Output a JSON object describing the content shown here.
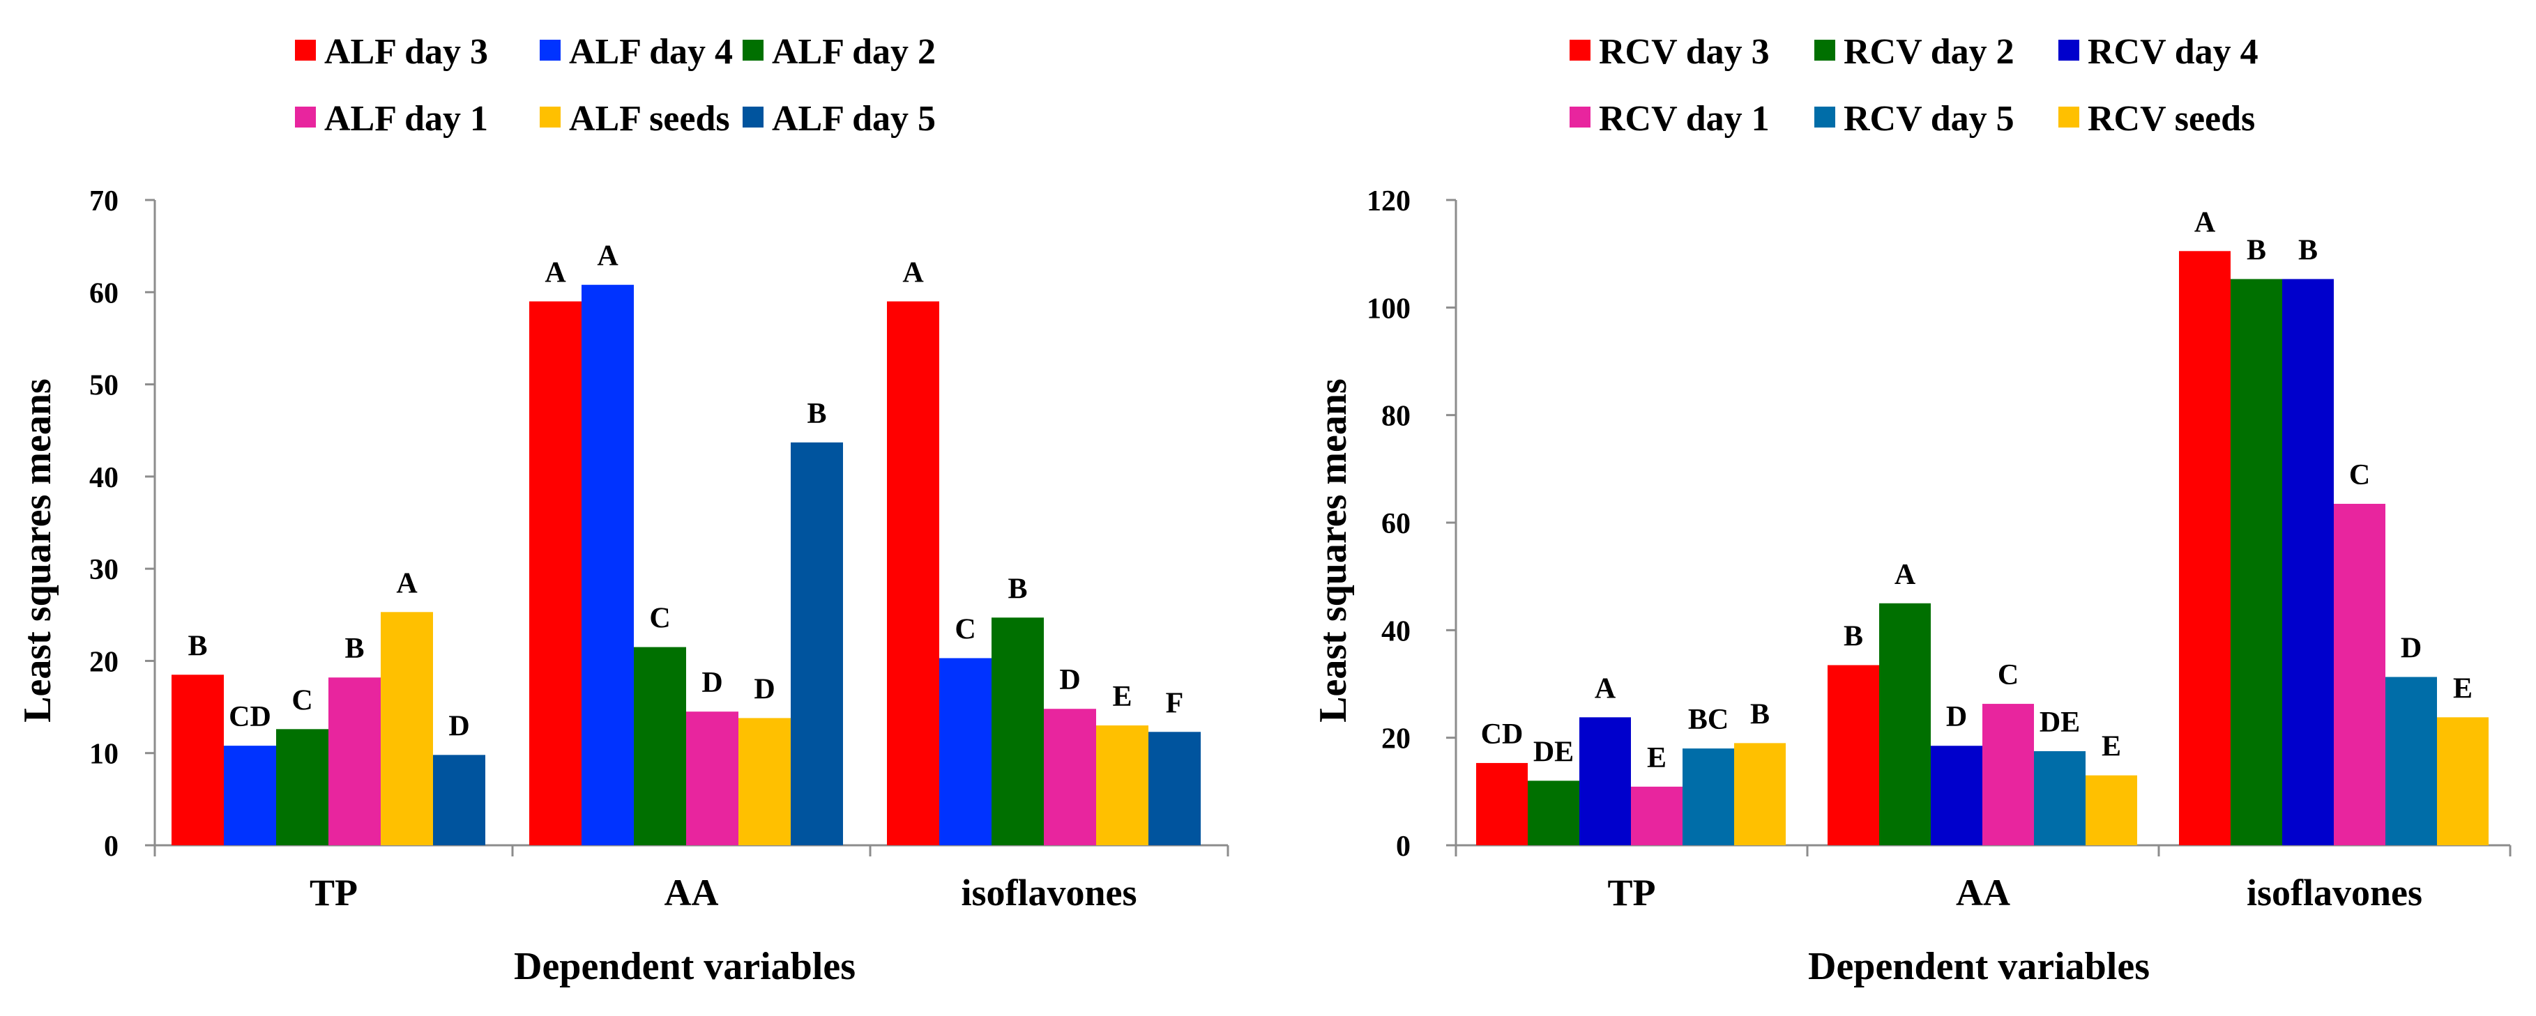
{
  "chart_data": [
    {
      "type": "bar",
      "title": "",
      "xlabel": "Dependent variables",
      "ylabel": "Least squares means",
      "ylim": [
        0,
        70
      ],
      "yticks": [
        0,
        10,
        20,
        30,
        40,
        50,
        60,
        70
      ],
      "grid": false,
      "legend_position": "top",
      "categories": [
        "TP",
        "AA",
        "isoflavones"
      ],
      "series": [
        {
          "name": "ALF day 3",
          "color": "#ff0000",
          "values": [
            18.5,
            59,
            59
          ],
          "labels": [
            "B",
            "A",
            "A"
          ]
        },
        {
          "name": "ALF day 4",
          "color": "#0033ff",
          "values": [
            10.8,
            60.8,
            20.3
          ],
          "labels": [
            "CD",
            "A",
            "C"
          ]
        },
        {
          "name": "ALF day 2",
          "color": "#007000",
          "values": [
            12.6,
            21.5,
            24.7
          ],
          "labels": [
            "C",
            "C",
            "B"
          ]
        },
        {
          "name": "ALF day 1",
          "color": "#e8259e",
          "values": [
            18.2,
            14.5,
            14.8
          ],
          "labels": [
            "B",
            "D",
            "D"
          ]
        },
        {
          "name": "ALF seeds",
          "color": "#ffc000",
          "values": [
            25.3,
            13.8,
            13.0
          ],
          "labels": [
            "A",
            "D",
            "E"
          ]
        },
        {
          "name": "ALF day 5",
          "color": "#00549e",
          "values": [
            9.8,
            43.7,
            12.3
          ],
          "labels": [
            "D",
            "B",
            "F"
          ]
        }
      ]
    },
    {
      "type": "bar",
      "title": "",
      "xlabel": "Dependent variables",
      "ylabel": "Least squares means",
      "ylim": [
        0,
        120
      ],
      "yticks": [
        0,
        20,
        40,
        60,
        80,
        100,
        120
      ],
      "grid": false,
      "legend_position": "top",
      "categories": [
        "TP",
        "AA",
        "isoflavones"
      ],
      "series": [
        {
          "name": "RCV day 3",
          "color": "#ff0000",
          "values": [
            15.3,
            33.5,
            110.5
          ],
          "labels": [
            "CD",
            "B",
            "A"
          ]
        },
        {
          "name": "RCV day 2",
          "color": "#007000",
          "values": [
            12.0,
            45.0,
            105.3
          ],
          "labels": [
            "DE",
            "A",
            "B"
          ]
        },
        {
          "name": "RCV day 4",
          "color": "#0000cc",
          "values": [
            23.8,
            18.5,
            105.3
          ],
          "labels": [
            "A",
            "D",
            "B"
          ]
        },
        {
          "name": "RCV day 1",
          "color": "#e8259e",
          "values": [
            10.9,
            26.3,
            63.5
          ],
          "labels": [
            "E",
            "C",
            "C"
          ]
        },
        {
          "name": "RCV day 5",
          "color": "#006da8",
          "values": [
            18.0,
            17.5,
            31.3
          ],
          "labels": [
            "BC",
            "DE",
            "D"
          ]
        },
        {
          "name": "RCV seeds",
          "color": "#ffc000",
          "values": [
            19.0,
            13.0,
            23.8
          ],
          "labels": [
            "B",
            "E",
            "E"
          ]
        }
      ]
    }
  ]
}
